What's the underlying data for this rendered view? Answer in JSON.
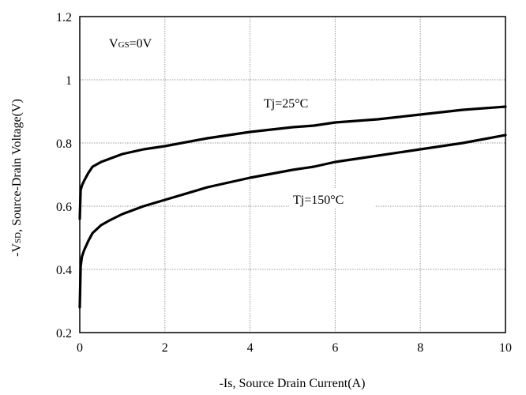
{
  "chart_data": {
    "type": "line",
    "xlabel": "-Is, Source Drain Current(A)",
    "ylabel": "-VSD, Source-Drain Voltage(V)",
    "xlim": [
      0,
      10
    ],
    "ylim": [
      0.2,
      1.2
    ],
    "x_ticks": [
      "0",
      "2",
      "4",
      "6",
      "8",
      "10"
    ],
    "y_ticks": [
      "0.2",
      "0.4",
      "0.6",
      "0.8",
      "1",
      "1.2"
    ],
    "grid": true,
    "condition_label": {
      "prefix": "V",
      "subscript": "GS",
      "suffix": "=0V"
    },
    "series": [
      {
        "name": "Tj=25°C",
        "x": [
          0.0,
          0.02,
          0.05,
          0.1,
          0.2,
          0.3,
          0.5,
          0.7,
          1.0,
          1.5,
          2.0,
          3.0,
          4.0,
          5.0,
          5.5,
          6.0,
          6.5,
          7.0,
          8.0,
          9.0,
          10.0
        ],
        "y": [
          0.56,
          0.65,
          0.665,
          0.68,
          0.705,
          0.725,
          0.74,
          0.75,
          0.765,
          0.78,
          0.79,
          0.815,
          0.835,
          0.85,
          0.855,
          0.865,
          0.87,
          0.875,
          0.89,
          0.905,
          0.915
        ]
      },
      {
        "name": "Tj=150°C",
        "x": [
          0.0,
          0.02,
          0.05,
          0.1,
          0.2,
          0.3,
          0.5,
          0.7,
          1.0,
          1.5,
          2.0,
          3.0,
          4.0,
          5.0,
          5.5,
          6.0,
          6.5,
          7.0,
          8.0,
          9.0,
          10.0
        ],
        "y": [
          0.28,
          0.41,
          0.44,
          0.46,
          0.49,
          0.515,
          0.54,
          0.555,
          0.575,
          0.6,
          0.62,
          0.66,
          0.69,
          0.715,
          0.725,
          0.74,
          0.75,
          0.76,
          0.78,
          0.8,
          0.825
        ]
      }
    ]
  }
}
